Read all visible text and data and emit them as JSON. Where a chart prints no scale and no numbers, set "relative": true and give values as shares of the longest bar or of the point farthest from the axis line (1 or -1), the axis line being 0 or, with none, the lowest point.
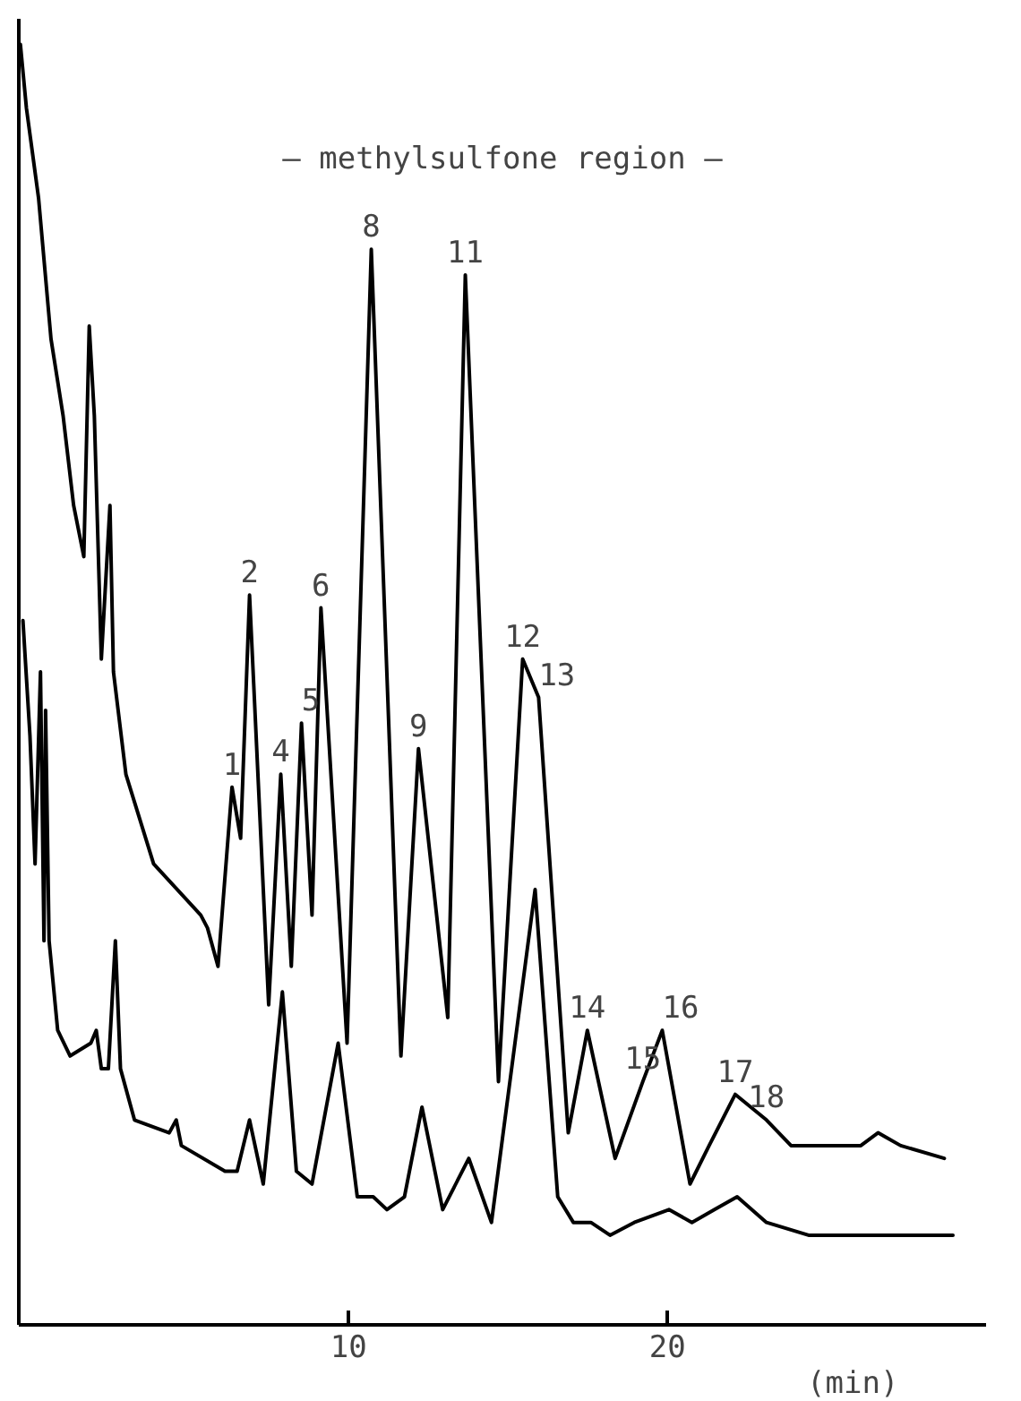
{
  "chart_data": {
    "type": "line",
    "relative": true,
    "xlabel": "(min)",
    "xlim": [
      -0.35,
      30
    ],
    "xticks": [
      10,
      20
    ],
    "tick_labels": "x",
    "grid": false,
    "marker": "none",
    "line_style": "solid",
    "series": [
      {
        "color": "#000000",
        "x": [
          -0.3,
          -0.11,
          0.27,
          0.66,
          1.04,
          1.37,
          1.69,
          1.86,
          2.02,
          2.24,
          2.51,
          2.62,
          3.01,
          3.88,
          5.36,
          5.57,
          5.9,
          6.34,
          6.61,
          6.89,
          7.49,
          7.87,
          8.2,
          8.52,
          8.85,
          9.13,
          9.95,
          10.71,
          11.64,
          12.19,
          13.11,
          13.66,
          14.7,
          15.46,
          15.96,
          16.89,
          17.49,
          18.36,
          19.23,
          19.84,
          20.71,
          21.31,
          22.13,
          23.11,
          23.88,
          26.07,
          26.61,
          27.32,
          28.69
        ],
        "values": [
          1.0,
          0.95,
          0.88,
          0.77,
          0.71,
          0.64,
          0.6,
          0.78,
          0.71,
          0.52,
          0.64,
          0.51,
          0.43,
          0.36,
          0.32,
          0.31,
          0.28,
          0.42,
          0.38,
          0.57,
          0.25,
          0.43,
          0.28,
          0.47,
          0.32,
          0.56,
          0.22,
          0.84,
          0.21,
          0.45,
          0.24,
          0.82,
          0.19,
          0.52,
          0.49,
          0.15,
          0.23,
          0.13,
          0.19,
          0.23,
          0.11,
          0.14,
          0.18,
          0.16,
          0.14,
          0.14,
          0.15,
          0.14,
          0.13
        ]
      },
      {
        "color": "#000000",
        "x": [
          -0.22,
          0.0,
          0.16,
          0.33,
          0.44,
          0.49,
          0.6,
          0.87,
          1.26,
          1.91,
          2.08,
          2.24,
          2.46,
          2.68,
          2.84,
          3.28,
          4.37,
          4.59,
          4.75,
          6.12,
          6.5,
          6.89,
          7.32,
          7.92,
          8.36,
          8.85,
          9.67,
          10.27,
          10.77,
          11.2,
          11.75,
          12.3,
          12.95,
          13.77,
          14.48,
          15.85,
          16.56,
          17.05,
          17.6,
          18.2,
          18.96,
          20.05,
          20.77,
          21.48,
          22.19,
          23.11,
          24.43,
          26.61,
          28.96
        ],
        "values": [
          0.55,
          0.46,
          0.36,
          0.51,
          0.3,
          0.48,
          0.3,
          0.23,
          0.21,
          0.22,
          0.23,
          0.2,
          0.2,
          0.3,
          0.2,
          0.16,
          0.15,
          0.16,
          0.14,
          0.12,
          0.12,
          0.16,
          0.11,
          0.26,
          0.12,
          0.11,
          0.22,
          0.1,
          0.1,
          0.09,
          0.1,
          0.17,
          0.09,
          0.13,
          0.08,
          0.34,
          0.1,
          0.08,
          0.08,
          0.07,
          0.08,
          0.09,
          0.08,
          0.09,
          0.1,
          0.08,
          0.07,
          0.07,
          0.07
        ]
      }
    ],
    "annotations": [
      "— methylsulfone region —",
      {
        "text": "1",
        "x": 6.34,
        "y": 0.42
      },
      {
        "text": "2",
        "x": 6.89,
        "y": 0.57
      },
      {
        "text": "4",
        "x": 7.87,
        "y": 0.43
      },
      {
        "text": "5",
        "x": 8.52,
        "y": 0.47
      },
      {
        "text": "6",
        "x": 9.13,
        "y": 0.56
      },
      {
        "text": "8",
        "x": 10.71,
        "y": 0.84
      },
      {
        "text": "9",
        "x": 12.19,
        "y": 0.45
      },
      {
        "text": "11",
        "x": 13.66,
        "y": 0.82
      },
      {
        "text": "12",
        "x": 15.46,
        "y": 0.52
      },
      {
        "text": "13",
        "x": 15.96,
        "y": 0.49
      },
      {
        "text": "14",
        "x": 17.49,
        "y": 0.23
      },
      {
        "text": "15",
        "x": 19.23,
        "y": 0.19
      },
      {
        "text": "16",
        "x": 19.84,
        "y": 0.23
      },
      {
        "text": "17",
        "x": 22.13,
        "y": 0.18
      },
      {
        "text": "18",
        "x": 23.11,
        "y": 0.16
      }
    ]
  }
}
